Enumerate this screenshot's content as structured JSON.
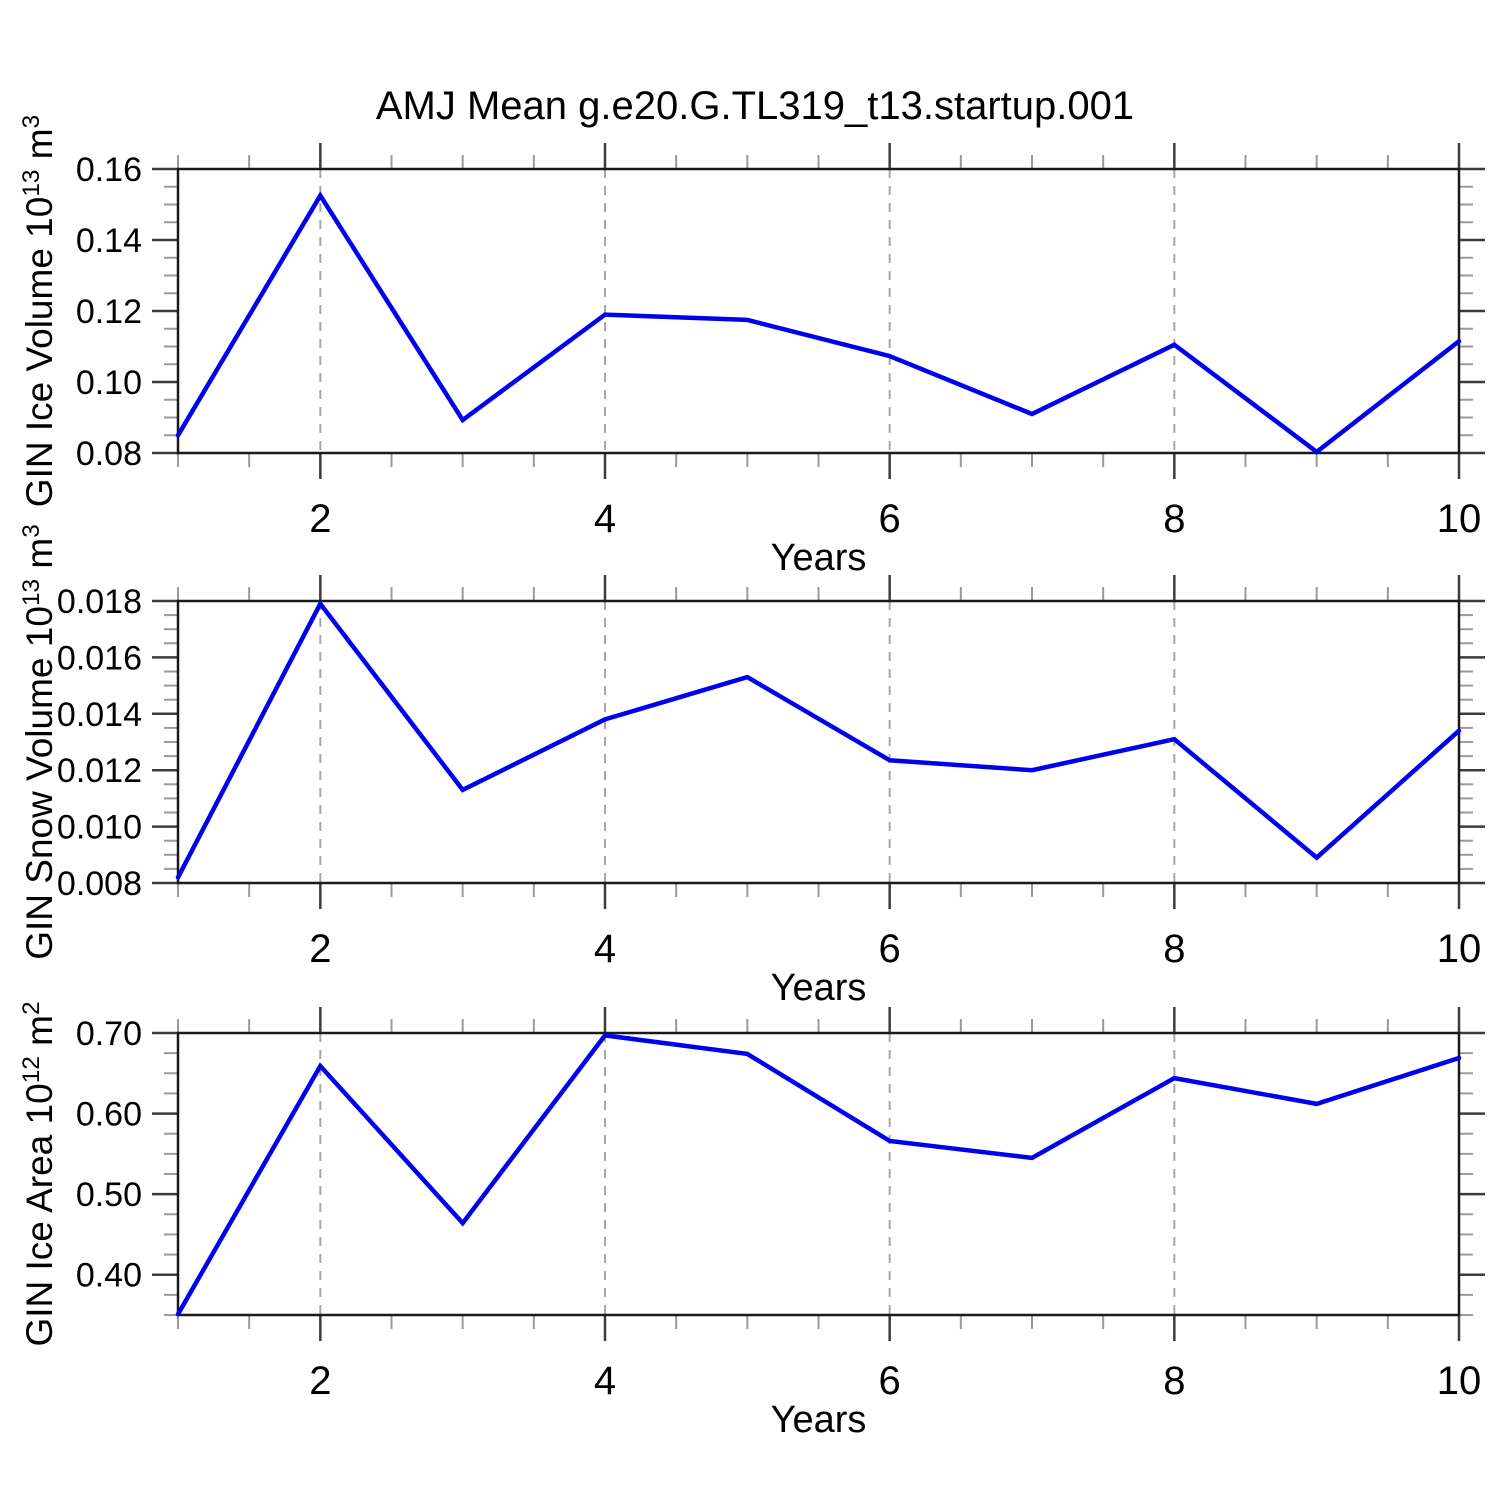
{
  "title": "AMJ Mean g.e20.G.TL319_t13.startup.001",
  "chart_data": [
    {
      "type": "line",
      "title": "",
      "xlabel": "Years",
      "ylabel_display": "GIN Ice Volume 10¹³ m³",
      "ylabel": {
        "prefix": "GIN Ice Volume 10",
        "exponent": "13",
        "unit": " m",
        "unit_exponent": "3"
      },
      "x": [
        1,
        2,
        3,
        4,
        5,
        6,
        7,
        8,
        9,
        10
      ],
      "values": [
        0.085,
        0.1525,
        0.0893,
        0.119,
        0.1175,
        0.1073,
        0.091,
        0.1105,
        0.0803,
        0.1115
      ],
      "xlim": [
        1,
        10
      ],
      "ylim": [
        0.08,
        0.16
      ],
      "yticks": {
        "major": [
          0.08,
          0.1,
          0.12,
          0.14,
          0.16
        ],
        "labels": [
          "0.08",
          "0.10",
          "0.12",
          "0.14",
          "0.16"
        ],
        "minor_step": 0.005
      },
      "xticks": {
        "major": [
          2,
          4,
          6,
          8,
          10
        ],
        "labels": [
          "2",
          "4",
          "6",
          "8",
          "10"
        ],
        "minor_step": 0.5
      },
      "gridlines_x": [
        2,
        4,
        6,
        8
      ],
      "grid": "dashed-vertical",
      "legend": "none",
      "line_color": "#0000ee"
    },
    {
      "type": "line",
      "title": "",
      "xlabel": "Years",
      "ylabel_display": "GIN Snow Volume 10¹³ m³",
      "ylabel": {
        "prefix": "GIN Snow Volume 10",
        "exponent": "13",
        "unit": " m",
        "unit_exponent": "3"
      },
      "x": [
        1,
        2,
        3,
        4,
        5,
        6,
        7,
        8,
        9,
        10
      ],
      "values": [
        0.0082,
        0.0179,
        0.0113,
        0.0138,
        0.0153,
        0.01235,
        0.012,
        0.0131,
        0.0089,
        0.0134
      ],
      "xlim": [
        1,
        10
      ],
      "ylim": [
        0.008,
        0.018
      ],
      "yticks": {
        "major": [
          0.008,
          0.01,
          0.012,
          0.014,
          0.016,
          0.018
        ],
        "labels": [
          "0.008",
          "0.010",
          "0.012",
          "0.014",
          "0.016",
          "0.018"
        ],
        "minor_step": 0.0005
      },
      "xticks": {
        "major": [
          2,
          4,
          6,
          8,
          10
        ],
        "labels": [
          "2",
          "4",
          "6",
          "8",
          "10"
        ],
        "minor_step": 0.5
      },
      "gridlines_x": [
        2,
        4,
        6,
        8
      ],
      "grid": "dashed-vertical",
      "legend": "none",
      "line_color": "#0000ee"
    },
    {
      "type": "line",
      "title": "",
      "xlabel": "Years",
      "ylabel_display": "GIN Ice Area 10¹² m²",
      "ylabel": {
        "prefix": "GIN Ice Area 10",
        "exponent": "12",
        "unit": " m",
        "unit_exponent": "2"
      },
      "x": [
        1,
        2,
        3,
        4,
        5,
        6,
        7,
        8,
        9,
        10
      ],
      "values": [
        0.351,
        0.659,
        0.464,
        0.697,
        0.674,
        0.566,
        0.545,
        0.644,
        0.612,
        0.669
      ],
      "xlim": [
        1,
        10
      ],
      "ylim": [
        0.35,
        0.7
      ],
      "yticks": {
        "major": [
          0.4,
          0.5,
          0.6,
          0.7
        ],
        "labels": [
          "0.40",
          "0.50",
          "0.60",
          "0.70"
        ],
        "minor_step": 0.025
      },
      "xticks": {
        "major": [
          2,
          4,
          6,
          8,
          10
        ],
        "labels": [
          "2",
          "4",
          "6",
          "8",
          "10"
        ],
        "minor_step": 0.5
      },
      "gridlines_x": [
        2,
        4,
        6,
        8
      ],
      "grid": "dashed-vertical",
      "legend": "none",
      "line_color": "#0000ee"
    }
  ],
  "colors": {
    "line": "#0000ee",
    "axis": "#1a1a1a",
    "major_tick": "#3c3c3c",
    "minor_tick": "#9a9a9a",
    "gridline": "#a6a6a6",
    "background": "#ffffff",
    "text": "#000000"
  }
}
